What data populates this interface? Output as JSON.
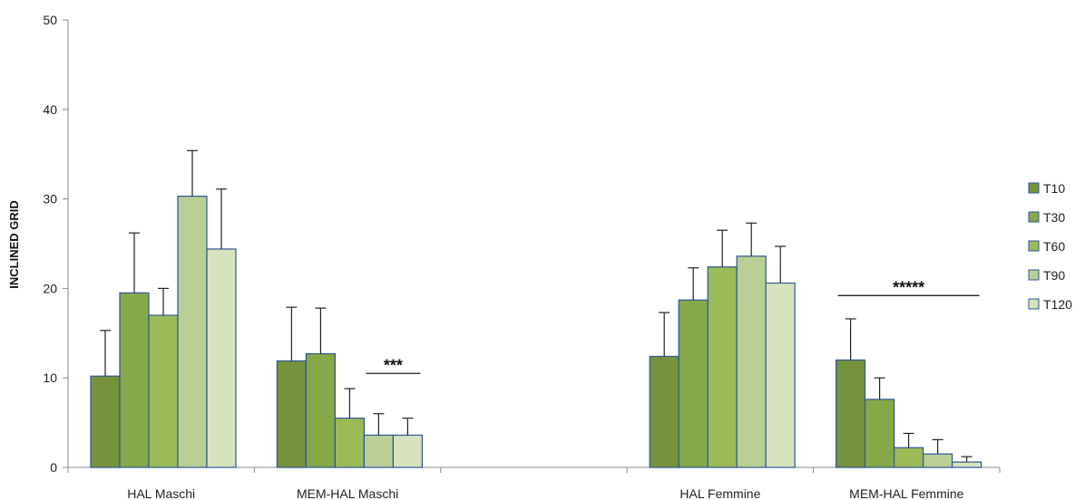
{
  "chart_data": {
    "type": "bar",
    "title": "",
    "xlabel": "",
    "ylabel": "INCLINED GRID",
    "ylim": [
      0,
      50
    ],
    "yticks": [
      0,
      10,
      20,
      30,
      40,
      50
    ],
    "categories": [
      "HAL Maschi",
      "MEM-HAL Maschi",
      "",
      "HAL Femmine",
      "MEM-HAL Femmine"
    ],
    "series": [
      {
        "name": "T10",
        "color": "#76923c",
        "values": [
          10.2,
          11.9,
          null,
          12.4,
          12.0
        ],
        "errors": [
          5.1,
          6.0,
          null,
          4.9,
          4.6
        ]
      },
      {
        "name": "T30",
        "color": "#86a849",
        "values": [
          19.5,
          12.7,
          null,
          18.7,
          7.6
        ],
        "errors": [
          6.7,
          5.1,
          null,
          3.6,
          2.4
        ]
      },
      {
        "name": "T60",
        "color": "#9bbb59",
        "values": [
          17.0,
          5.5,
          null,
          22.4,
          2.2
        ],
        "errors": [
          3.0,
          3.3,
          null,
          4.1,
          1.6
        ]
      },
      {
        "name": "T90",
        "color": "#b9cf95",
        "values": [
          30.3,
          3.6,
          null,
          23.6,
          1.5
        ],
        "errors": [
          5.1,
          2.4,
          null,
          3.7,
          1.6
        ]
      },
      {
        "name": "T120",
        "color": "#d6e3bc",
        "values": [
          24.4,
          3.6,
          null,
          20.6,
          0.6
        ],
        "errors": [
          6.7,
          1.9,
          null,
          4.1,
          0.6
        ]
      }
    ],
    "significance": [
      {
        "category": "MEM-HAL Maschi",
        "label": "***",
        "from_series": 3,
        "to_series": 4,
        "y": 10.5
      },
      {
        "category": "MEM-HAL Femmine",
        "label": "*****",
        "from_series": 0,
        "to_series": 4,
        "y": 19.2
      }
    ],
    "legend_position": "right",
    "grid": false,
    "bar_edge_color": "#2f5597"
  }
}
